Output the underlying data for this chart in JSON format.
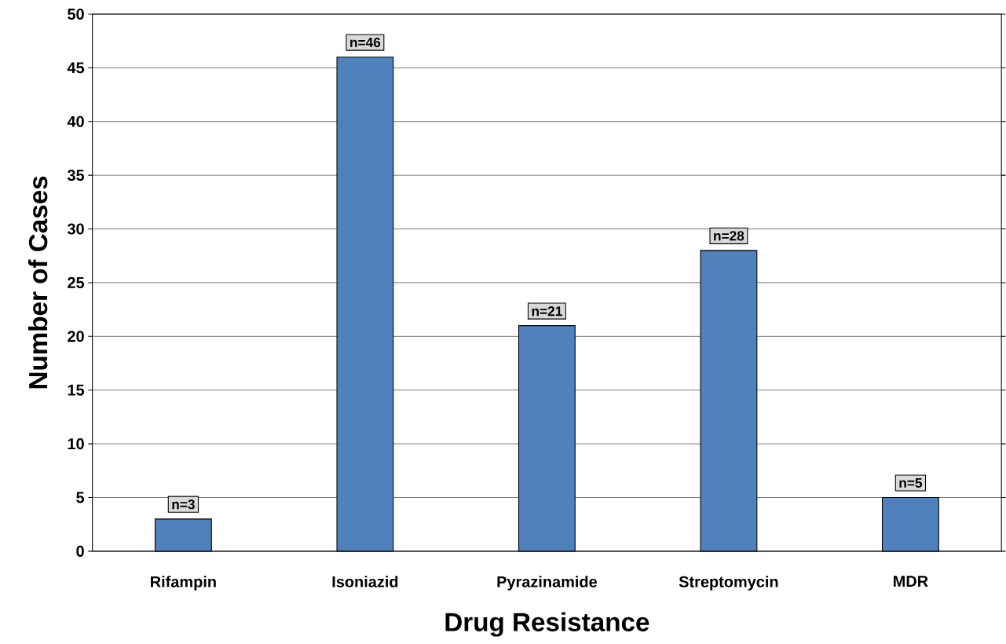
{
  "chart_data": {
    "type": "bar",
    "xlabel": "Drug Resistance",
    "ylabel": "Number of Cases",
    "categories": [
      "Rifampin",
      "Isoniazid",
      "Pyrazinamide",
      "Streptomycin",
      "MDR"
    ],
    "values": [
      3,
      46,
      21,
      28,
      5
    ],
    "value_labels": [
      "n=3",
      "n=46",
      "n=21",
      "n=28",
      "n=5"
    ],
    "color": "#4f81bd",
    "ylim": [
      0,
      50
    ],
    "yticks": [
      0,
      5,
      10,
      15,
      20,
      25,
      30,
      35,
      40,
      45,
      50
    ],
    "grid": "y"
  }
}
